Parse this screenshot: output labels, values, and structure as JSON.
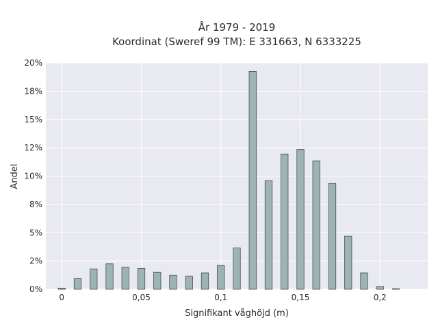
{
  "chart_data": {
    "type": "bar",
    "title": "År 1979 - 2019",
    "subtitle": "Koordinat (Sweref 99 TM): E 331663, N 6333225",
    "xlabel": "Signifikant våghöjd (m)",
    "ylabel": "Andel",
    "xlim": [
      -0.01,
      0.23
    ],
    "ylim": [
      0,
      0.2
    ],
    "x_ticks": [
      {
        "value": 0,
        "label": "0"
      },
      {
        "value": 0.05,
        "label": "0,05"
      },
      {
        "value": 0.1,
        "label": "0,1"
      },
      {
        "value": 0.15,
        "label": "0,15"
      },
      {
        "value": 0.2,
        "label": "0,2"
      }
    ],
    "y_ticks": [
      {
        "value": 0,
        "label": "0%"
      },
      {
        "value": 0.025,
        "label": "2%"
      },
      {
        "value": 0.05,
        "label": "5%"
      },
      {
        "value": 0.075,
        "label": "8%"
      },
      {
        "value": 0.1,
        "label": "10%"
      },
      {
        "value": 0.125,
        "label": "12%"
      },
      {
        "value": 0.15,
        "label": "15%"
      },
      {
        "value": 0.175,
        "label": "18%"
      },
      {
        "value": 0.2,
        "label": "20%"
      }
    ],
    "x": [
      0,
      0.01,
      0.02,
      0.03,
      0.04,
      0.05,
      0.06,
      0.07,
      0.08,
      0.09,
      0.1,
      0.11,
      0.12,
      0.13,
      0.14,
      0.15,
      0.16,
      0.17,
      0.18,
      0.19,
      0.2,
      0.21
    ],
    "values": [
      0.001,
      0.0095,
      0.018,
      0.0225,
      0.0195,
      0.0185,
      0.015,
      0.0125,
      0.0115,
      0.0145,
      0.021,
      0.0365,
      0.1925,
      0.096,
      0.1195,
      0.1235,
      0.1135,
      0.0935,
      0.047,
      0.0145,
      0.0025,
      0.0005
    ],
    "bar_color": "#9db3b5",
    "bar_edge_color": "#3d4f50",
    "plot_background": "#e9e9f1",
    "grid": true,
    "gridline_color": "#ffffff"
  }
}
